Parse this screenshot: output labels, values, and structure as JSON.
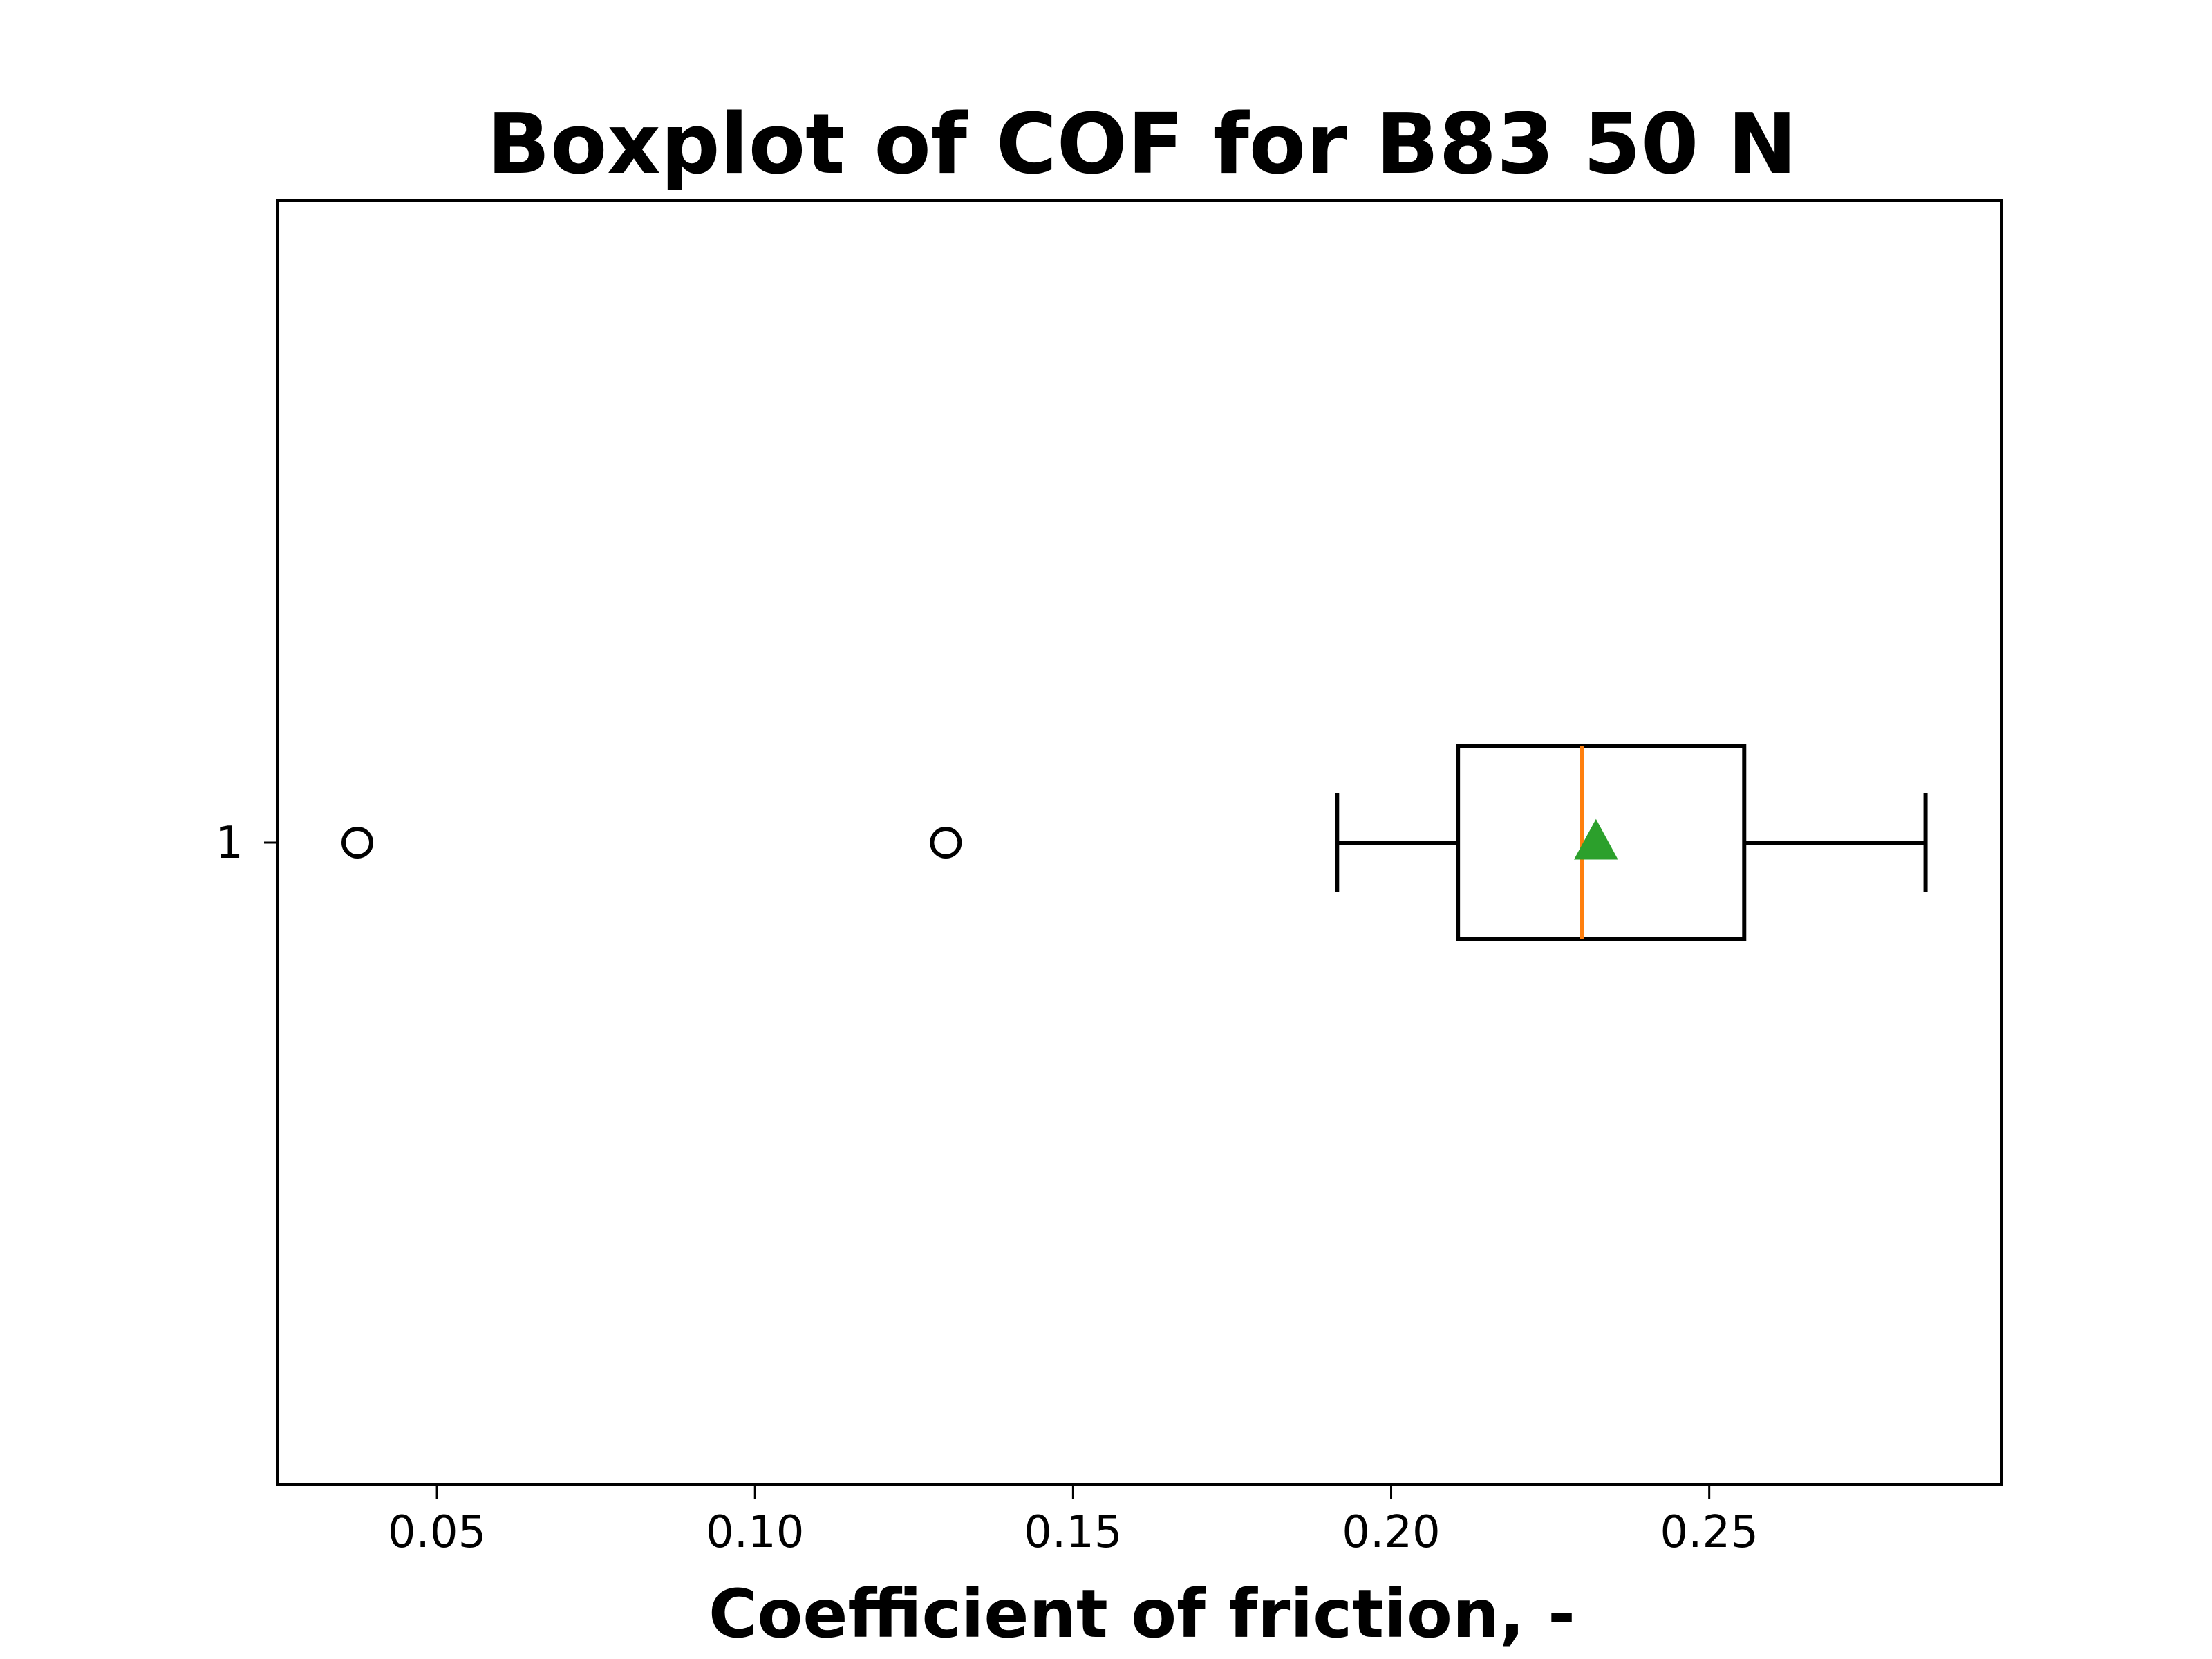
{
  "chart_data": {
    "type": "boxplot",
    "orientation": "horizontal",
    "title": "Boxplot of COF for B83 50 N",
    "xlabel": "Coefficient of friction, -",
    "ylabel": "",
    "xlim": [
      0.025,
      0.296
    ],
    "xticks": [
      {
        "value": 0.05,
        "label": "0.05"
      },
      {
        "value": 0.1,
        "label": "0.10"
      },
      {
        "value": 0.15,
        "label": "0.15"
      },
      {
        "value": 0.2,
        "label": "0.20"
      },
      {
        "value": 0.25,
        "label": "0.25"
      }
    ],
    "categories": [
      "1"
    ],
    "boxes": [
      {
        "category": "1",
        "whisker_low": 0.1915,
        "q1": 0.2105,
        "median": 0.23,
        "mean": 0.2322,
        "q3": 0.2555,
        "whisker_high": 0.284,
        "outliers": [
          0.0375,
          0.13
        ]
      }
    ],
    "colors": {
      "box": "#000000",
      "median": "#ff7f0e",
      "mean_marker": "#2ca02c",
      "outlier": "#000000"
    },
    "grid": false
  }
}
